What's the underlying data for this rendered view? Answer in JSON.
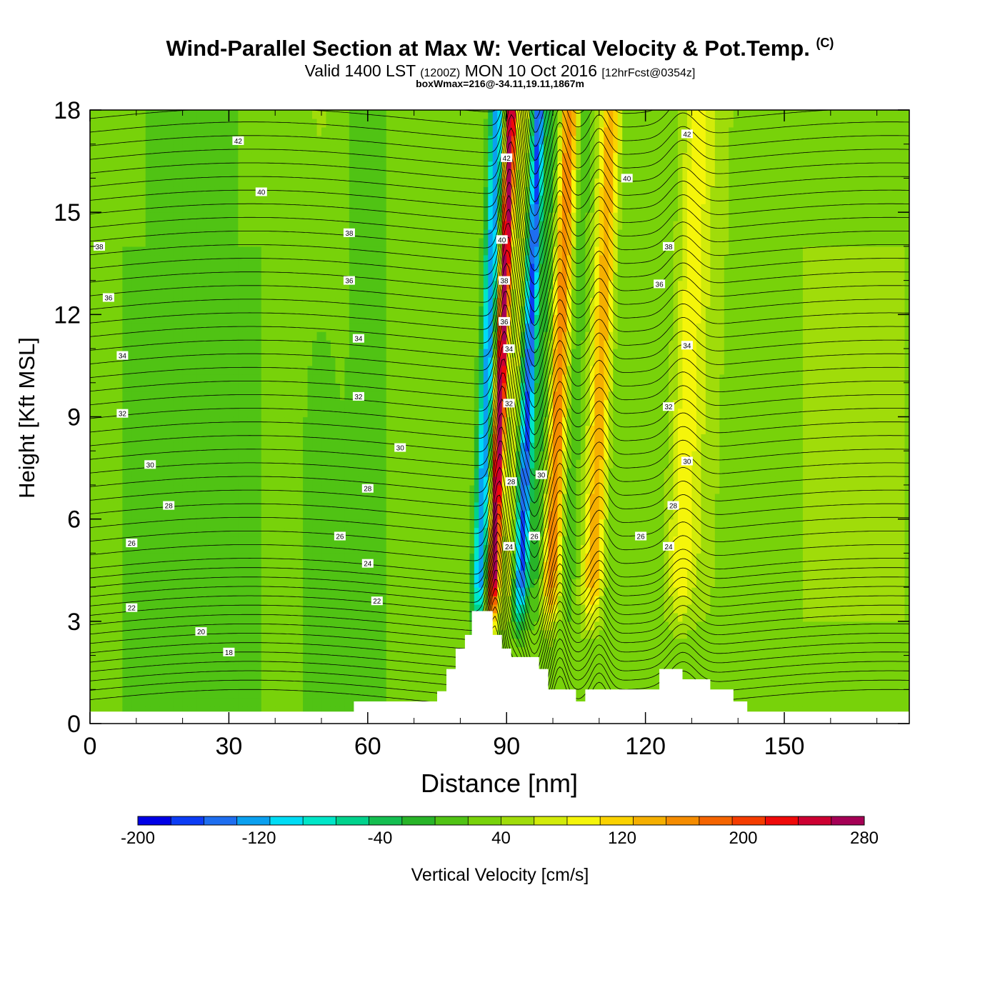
{
  "title": "Wind-Parallel Section at Max W: Vertical Velocity & Pot.Temp.",
  "title_mark": "(C)",
  "subtitle": {
    "valid_prefix": "Valid 1400 LST",
    "utc": "(1200Z)",
    "date": "MON 10 Oct 2016",
    "forecast": "[12hrFcst@0354z]"
  },
  "info_line": "boxWmax=216@-34.11,19.11,1867m",
  "chart_data": {
    "type": "heatmap",
    "xlabel": "Distance [nm]",
    "ylabel": "Height [Kft MSL]",
    "xlim": [
      0,
      177
    ],
    "ylim": [
      0,
      18
    ],
    "x_ticks": [
      "0",
      "30",
      "60",
      "90",
      "120",
      "150"
    ],
    "y_ticks": [
      "0",
      "3",
      "6",
      "9",
      "12",
      "15",
      "18"
    ],
    "colorbar": {
      "label": "Vertical Velocity [cm/s]",
      "levels": [
        -200,
        -180,
        -160,
        -140,
        -120,
        -100,
        -80,
        -60,
        -40,
        -20,
        0,
        20,
        40,
        60,
        80,
        100,
        120,
        140,
        160,
        180,
        200,
        220,
        240,
        260,
        280
      ],
      "tick_labels": [
        "-200",
        "-120",
        "-40",
        "40",
        "120",
        "200",
        "280"
      ],
      "colors": [
        "#0000e6",
        "#0c3cf5",
        "#1e6ef0",
        "#0aa0f0",
        "#00dcf5",
        "#00e6c8",
        "#00d28c",
        "#14be50",
        "#28b428",
        "#50c314",
        "#78d20a",
        "#a0dc0a",
        "#d2eb0a",
        "#f5f50a",
        "#fad200",
        "#f5af00",
        "#f58c00",
        "#f56400",
        "#f53c00",
        "#f00a0a",
        "#cd0032",
        "#a50055"
      ]
    },
    "velocity_bands": [
      {
        "x_center": 85.5,
        "value": -120
      },
      {
        "x_center": 88.5,
        "value": 200
      },
      {
        "x_center": 91.5,
        "value": 40
      },
      {
        "x_center": 94.5,
        "value": -160
      },
      {
        "x_center": 101,
        "value": 120
      },
      {
        "x_center": 110,
        "value": 100
      },
      {
        "x_center": 129,
        "value": 60
      }
    ],
    "terrain": {
      "x": [
        0,
        56,
        57,
        73,
        75,
        77,
        79,
        81,
        82.5,
        85,
        87,
        89,
        91,
        93,
        97,
        99,
        103,
        105,
        107,
        121,
        123,
        126,
        128,
        134,
        139,
        141,
        142,
        143,
        177
      ],
      "kft": [
        0.35,
        0.35,
        0.65,
        0.65,
        0.95,
        1.6,
        2.2,
        2.6,
        3.3,
        3.3,
        2.6,
        2.2,
        1.95,
        1.95,
        1.6,
        1.0,
        1.0,
        0.65,
        1.0,
        1.0,
        1.6,
        1.6,
        1.3,
        1.0,
        0.65,
        0.65,
        0.35,
        0.35,
        0.35
      ]
    },
    "isentrope_labels": [
      {
        "text": "42",
        "x": 32,
        "y": 17.1
      },
      {
        "text": "40",
        "x": 37,
        "y": 15.6
      },
      {
        "text": "38",
        "x": 56,
        "y": 14.4
      },
      {
        "text": "38",
        "x": 2,
        "y": 14.0
      },
      {
        "text": "36",
        "x": 56,
        "y": 13.0
      },
      {
        "text": "36",
        "x": 4,
        "y": 12.5
      },
      {
        "text": "34",
        "x": 58,
        "y": 11.3
      },
      {
        "text": "34",
        "x": 7,
        "y": 10.8
      },
      {
        "text": "32",
        "x": 58,
        "y": 9.6
      },
      {
        "text": "32",
        "x": 7,
        "y": 9.1
      },
      {
        "text": "30",
        "x": 67,
        "y": 8.1
      },
      {
        "text": "30",
        "x": 13,
        "y": 7.6
      },
      {
        "text": "28",
        "x": 60,
        "y": 6.9
      },
      {
        "text": "28",
        "x": 17,
        "y": 6.4
      },
      {
        "text": "26",
        "x": 54,
        "y": 5.5
      },
      {
        "text": "26",
        "x": 9,
        "y": 5.3
      },
      {
        "text": "24",
        "x": 60,
        "y": 4.7
      },
      {
        "text": "22",
        "x": 62,
        "y": 3.6
      },
      {
        "text": "22",
        "x": 9,
        "y": 3.4
      },
      {
        "text": "20",
        "x": 24,
        "y": 2.7
      },
      {
        "text": "18",
        "x": 30,
        "y": 2.1
      },
      {
        "text": "42",
        "x": 90,
        "y": 16.6
      },
      {
        "text": "40",
        "x": 89,
        "y": 14.2
      },
      {
        "text": "38",
        "x": 89.5,
        "y": 13.0
      },
      {
        "text": "36",
        "x": 89.5,
        "y": 11.8
      },
      {
        "text": "34",
        "x": 90.5,
        "y": 11.0
      },
      {
        "text": "32",
        "x": 90.5,
        "y": 9.4
      },
      {
        "text": "30",
        "x": 97.5,
        "y": 7.3
      },
      {
        "text": "28",
        "x": 91,
        "y": 7.1
      },
      {
        "text": "26",
        "x": 96,
        "y": 5.5
      },
      {
        "text": "24",
        "x": 90.5,
        "y": 5.2
      },
      {
        "text": "40",
        "x": 116,
        "y": 16.0
      },
      {
        "text": "42",
        "x": 129,
        "y": 17.3
      },
      {
        "text": "38",
        "x": 125,
        "y": 14.0
      },
      {
        "text": "36",
        "x": 123,
        "y": 12.9
      },
      {
        "text": "34",
        "x": 129,
        "y": 11.1
      },
      {
        "text": "32",
        "x": 125,
        "y": 9.3
      },
      {
        "text": "30",
        "x": 129,
        "y": 7.7
      },
      {
        "text": "28",
        "x": 126,
        "y": 6.4
      },
      {
        "text": "26",
        "x": 119,
        "y": 5.5
      },
      {
        "text": "24",
        "x": 125,
        "y": 5.2
      }
    ]
  }
}
